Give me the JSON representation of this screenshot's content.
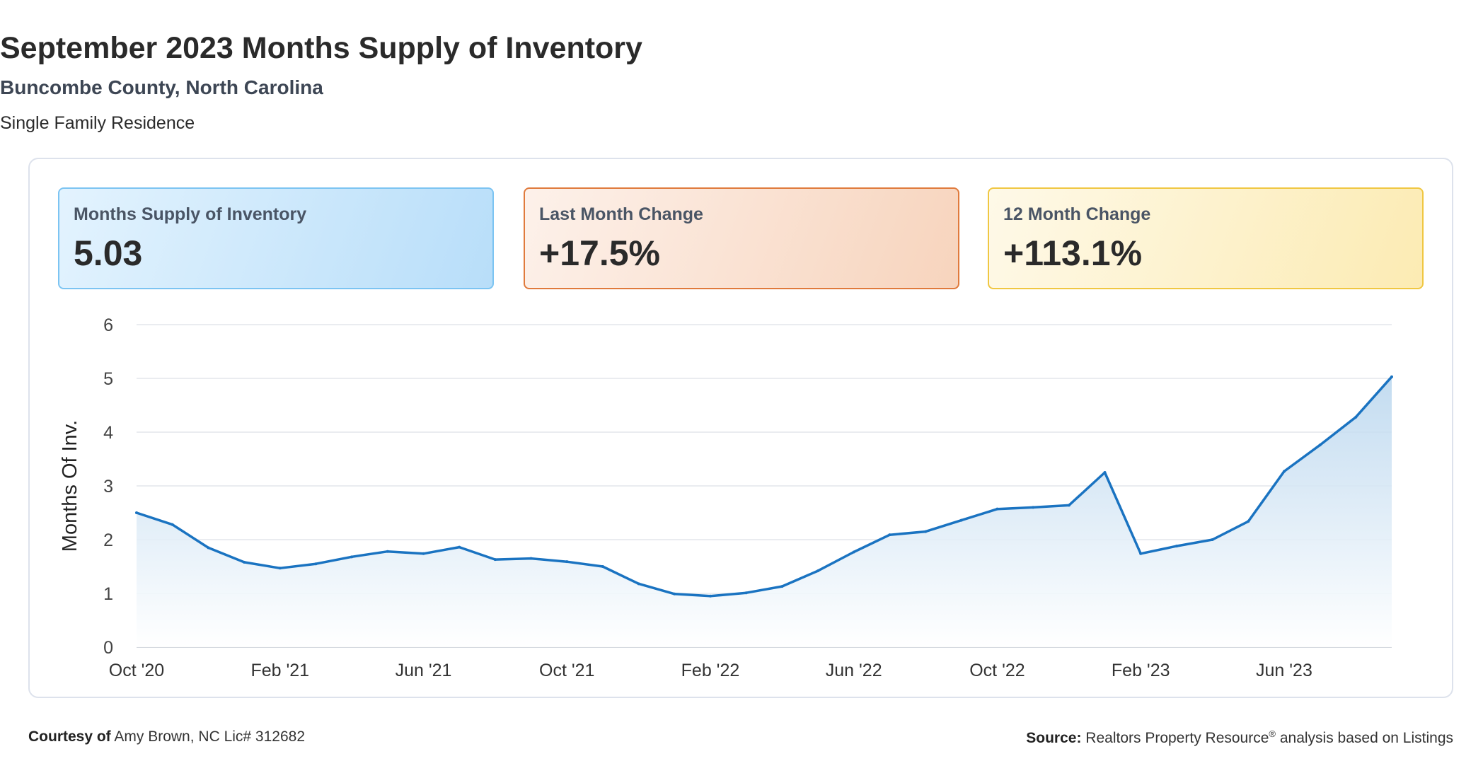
{
  "header": {
    "title": "September 2023 Months Supply of Inventory",
    "subtitle": "Buncombe County, North Carolina",
    "property_type": "Single Family Residence"
  },
  "cards": [
    {
      "label": "Months Supply of Inventory",
      "value": "5.03",
      "color": "#7cc4f2"
    },
    {
      "label": "Last Month Change",
      "value": "+17.5%",
      "color": "#e07a3c"
    },
    {
      "label": "12 Month Change",
      "value": "+113.1%",
      "color": "#f0c742"
    }
  ],
  "chart_data": {
    "type": "area",
    "ylabel": "Months Of Inv.",
    "ylim": [
      0,
      6
    ],
    "yticks": [
      0,
      1,
      2,
      3,
      4,
      5,
      6
    ],
    "xtick_labels": [
      "Oct '20",
      "Feb '21",
      "Jun '21",
      "Oct '21",
      "Feb '22",
      "Jun '22",
      "Oct '22",
      "Feb '23",
      "Jun '23"
    ],
    "xtick_month_index": [
      0,
      4,
      8,
      12,
      16,
      20,
      24,
      28,
      32
    ],
    "months": [
      "Oct 2020",
      "Nov 2020",
      "Dec 2020",
      "Jan 2021",
      "Feb 2021",
      "Mar 2021",
      "Apr 2021",
      "May 2021",
      "Jun 2021",
      "Jul 2021",
      "Aug 2021",
      "Sep 2021",
      "Oct 2021",
      "Nov 2021",
      "Dec 2021",
      "Jan 2022",
      "Feb 2022",
      "Mar 2022",
      "Apr 2022",
      "May 2022",
      "Jun 2022",
      "Jul 2022",
      "Aug 2022",
      "Sep 2022",
      "Oct 2022",
      "Nov 2022",
      "Dec 2022",
      "Jan 2023",
      "Feb 2023",
      "Mar 2023",
      "Apr 2023",
      "May 2023",
      "Jun 2023",
      "Jul 2023",
      "Aug 2023",
      "Sep 2023"
    ],
    "values": [
      2.5,
      2.28,
      1.85,
      1.58,
      1.47,
      1.55,
      1.68,
      1.78,
      1.74,
      1.86,
      1.63,
      1.65,
      1.59,
      1.5,
      1.18,
      0.99,
      0.95,
      1.01,
      1.13,
      1.42,
      1.77,
      2.09,
      2.15,
      2.36,
      2.57,
      2.6,
      2.64,
      3.25,
      1.74,
      1.88,
      2.0,
      2.34,
      3.27,
      3.76,
      4.28,
      5.03
    ],
    "line_color": "#1a73c1",
    "fill_color": "#cfe3f3",
    "grid": true
  },
  "footer": {
    "courtesy_label": "Courtesy of",
    "courtesy_text": "Amy Brown, NC Lic# 312682",
    "source_label": "Source:",
    "source_text": "Realtors Property Resource",
    "source_sup": "®",
    "source_suffix": "analysis based on Listings"
  }
}
